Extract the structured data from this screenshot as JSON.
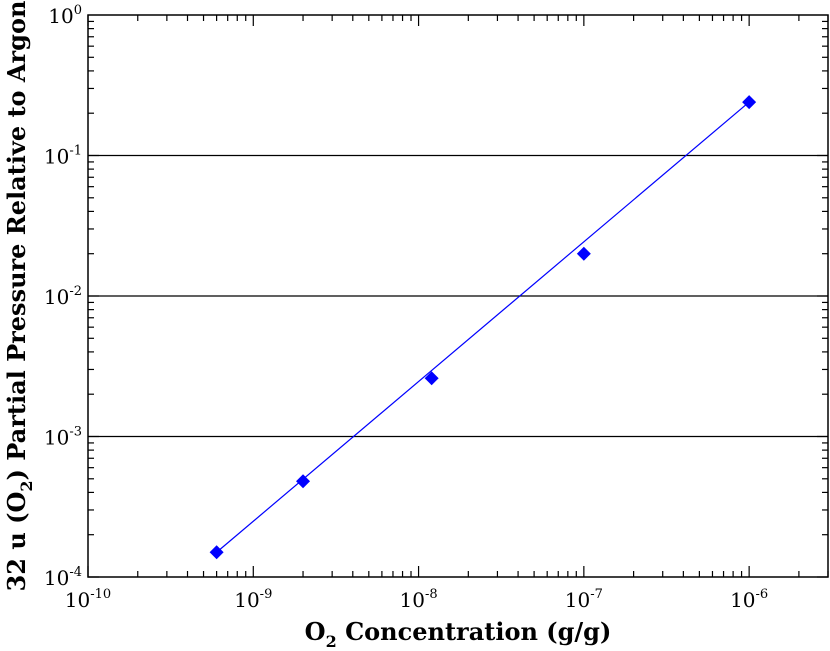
{
  "chart_data": {
    "type": "scatter",
    "xscale": "log",
    "yscale": "log",
    "xlim": [
      1e-10,
      3e-06
    ],
    "ylim": [
      0.0001,
      1
    ],
    "xlabel_parts": [
      "O",
      "2",
      " Concentration (g/g)"
    ],
    "ylabel_parts": [
      "32 u (O",
      "2",
      ") Partial Pressure Relative to Argon"
    ],
    "x_ticks": [
      {
        "value": 1e-10,
        "base": "10",
        "exp": "-10"
      },
      {
        "value": 1e-09,
        "base": "10",
        "exp": "-9"
      },
      {
        "value": 1e-08,
        "base": "10",
        "exp": "-8"
      },
      {
        "value": 1e-07,
        "base": "10",
        "exp": "-7"
      },
      {
        "value": 1e-06,
        "base": "10",
        "exp": "-6"
      }
    ],
    "y_ticks": [
      {
        "value": 0.0001,
        "base": "10",
        "exp": "-4"
      },
      {
        "value": 0.001,
        "base": "10",
        "exp": "-3"
      },
      {
        "value": 0.01,
        "base": "10",
        "exp": "-2"
      },
      {
        "value": 0.1,
        "base": "10",
        "exp": "-1"
      },
      {
        "value": 1,
        "base": "10",
        "exp": "0"
      }
    ],
    "grid": {
      "y_major": true,
      "x": false
    },
    "series": [
      {
        "marker": "diamond",
        "color": "#0000ff",
        "points": [
          {
            "x": 6e-10,
            "y": 0.00015
          },
          {
            "x": 2e-09,
            "y": 0.00048
          },
          {
            "x": 1.2e-08,
            "y": 0.0026
          },
          {
            "x": 1e-07,
            "y": 0.02
          },
          {
            "x": 1e-06,
            "y": 0.24
          }
        ]
      }
    ],
    "fit_line": {
      "color": "#0000ff",
      "from": {
        "x": 6e-10,
        "y": 0.00015
      },
      "to": {
        "x": 1e-06,
        "y": 0.24
      }
    }
  }
}
